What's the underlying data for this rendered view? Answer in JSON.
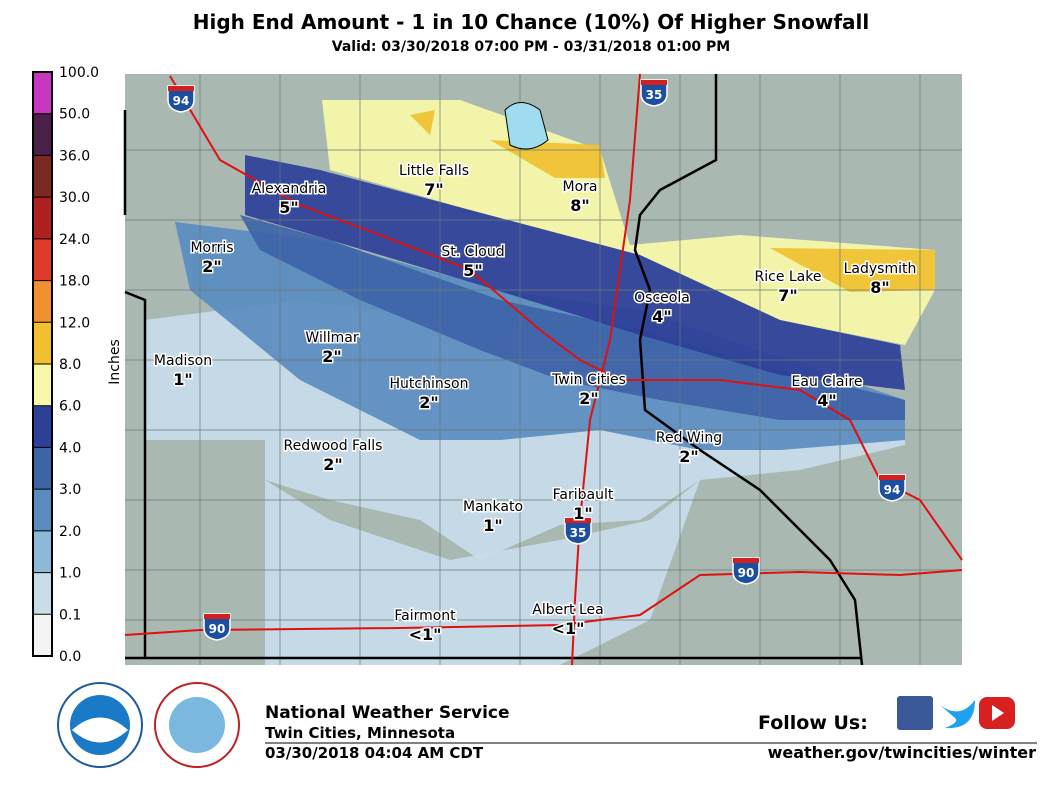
{
  "header": {
    "title": "High End Amount - 1 in 10 Chance (10%) Of Higher Snowfall",
    "subtitle": "Valid: 03/30/2018 07:00 PM - 03/31/2018 01:00 PM"
  },
  "legend": {
    "label": "Inches",
    "ticks": [
      {
        "value": 100,
        "label": "100.0"
      },
      {
        "value": 50,
        "label": "50.0"
      },
      {
        "value": 36,
        "label": "36.0"
      },
      {
        "value": 30,
        "label": "30.0"
      },
      {
        "value": 24,
        "label": "24.0"
      },
      {
        "value": 18,
        "label": "18.0"
      },
      {
        "value": 12,
        "label": "12.0"
      },
      {
        "value": 8,
        "label": "8.0"
      },
      {
        "value": 6,
        "label": "6.0"
      },
      {
        "value": 4,
        "label": "4.0"
      },
      {
        "value": 3,
        "label": "3.0"
      },
      {
        "value": 2,
        "label": "2.0"
      },
      {
        "value": 1,
        "label": "1.0"
      },
      {
        "value": 0.1,
        "label": "0.1"
      },
      {
        "value": 0,
        "label": "0.0"
      }
    ],
    "colors": [
      "#c837c0",
      "#4a2048",
      "#7a2a22",
      "#b02020",
      "#e03a2a",
      "#f09030",
      "#f0c030",
      "#f8f8a8",
      "#2e3f98",
      "#3e64a8",
      "#5a8cc0",
      "#8db8d8",
      "#c8dcea",
      "#f4f4f4"
    ]
  },
  "cities": [
    {
      "name": "Alexandria",
      "amount": "5\""
    },
    {
      "name": "Little Falls",
      "amount": "7\""
    },
    {
      "name": "Mora",
      "amount": "8\""
    },
    {
      "name": "Morris",
      "amount": "2\""
    },
    {
      "name": "St. Cloud",
      "amount": "5\""
    },
    {
      "name": "Rice Lake",
      "amount": "7\""
    },
    {
      "name": "Ladysmith",
      "amount": "8\""
    },
    {
      "name": "Osceola",
      "amount": "4\""
    },
    {
      "name": "Madison",
      "amount": "1\""
    },
    {
      "name": "Willmar",
      "amount": "2\""
    },
    {
      "name": "Hutchinson",
      "amount": "2\""
    },
    {
      "name": "Twin Cities",
      "amount": "2\""
    },
    {
      "name": "Eau Claire",
      "amount": "4\""
    },
    {
      "name": "Red Wing",
      "amount": "2\""
    },
    {
      "name": "Redwood Falls",
      "amount": "2\""
    },
    {
      "name": "Faribault",
      "amount": "1\""
    },
    {
      "name": "Mankato",
      "amount": "1\""
    },
    {
      "name": "Albert Lea",
      "amount": "<1\""
    },
    {
      "name": "Fairmont",
      "amount": "<1\""
    }
  ],
  "interstates": [
    "94",
    "35",
    "35",
    "94",
    "90",
    "90"
  ],
  "footer": {
    "org": "National Weather Service",
    "office": "Twin Cities, Minnesota",
    "issued": "03/30/2018 04:04 AM CDT",
    "follow": "Follow Us:",
    "url": "weather.gov/twincities/winter"
  }
}
